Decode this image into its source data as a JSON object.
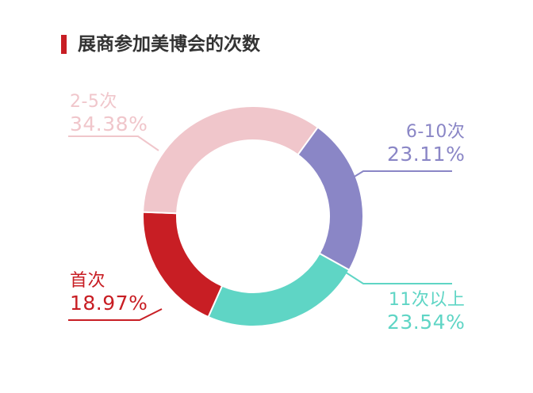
{
  "title": "展商参加美博会的次数",
  "chart_data": {
    "type": "pie",
    "variant": "donut",
    "title": "展商参加美博会的次数",
    "slices": [
      {
        "label": "6-10次",
        "value": 23.11,
        "value_text": "23.11%",
        "color": "#8a86c6"
      },
      {
        "label": "11次以上",
        "value": 23.54,
        "value_text": "23.54%",
        "color": "#5fd5c5"
      },
      {
        "label": "首次",
        "value": 18.97,
        "value_text": "18.97%",
        "color": "#c81e24"
      },
      {
        "label": "2-5次",
        "value": 34.38,
        "value_text": "34.38%",
        "color": "#f0c6cb"
      }
    ]
  }
}
